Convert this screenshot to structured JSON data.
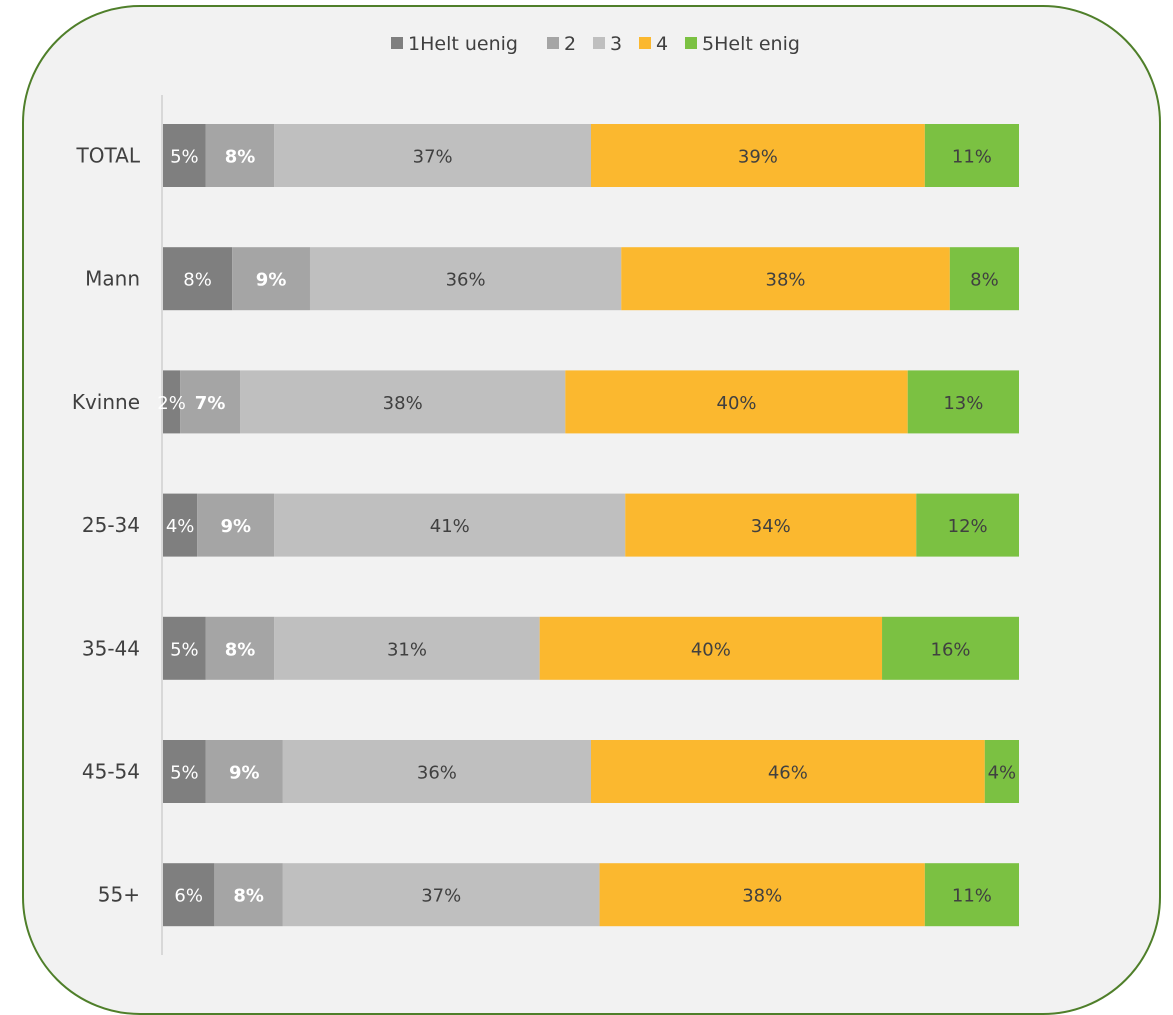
{
  "chart_data": {
    "type": "bar",
    "orientation": "horizontal",
    "stacked": true,
    "percent_stacked": true,
    "title": "",
    "xlabel": "",
    "ylabel": "",
    "legend_position": "top",
    "grid": false,
    "categories": [
      "TOTAL",
      "Mann",
      "Kvinne",
      "25-34",
      "35-44",
      "45-54",
      "55+"
    ],
    "series": [
      {
        "name": "1Helt uenig",
        "color": "#7f7f7f",
        "label_color": "#ffffff",
        "label_bold": false,
        "values": [
          5,
          8,
          2,
          4,
          5,
          5,
          6
        ],
        "labels": [
          "5%",
          "8%",
          "2%",
          "4%",
          "5%",
          "5%",
          "6%"
        ]
      },
      {
        "name": "2",
        "color": "#a5a5a5",
        "label_color": "#ffffff",
        "label_bold": true,
        "values": [
          8,
          9,
          7,
          9,
          8,
          9,
          8
        ],
        "labels": [
          "8%",
          "9%",
          "7%",
          "9%",
          "8%",
          "9%",
          "8%"
        ]
      },
      {
        "name": "3",
        "color": "#bfbfbf",
        "label_color": "#404040",
        "label_bold": false,
        "values": [
          37,
          36,
          38,
          41,
          31,
          36,
          37
        ],
        "labels": [
          "37%",
          "36%",
          "38%",
          "41%",
          "31%",
          "36%",
          "37%"
        ]
      },
      {
        "name": "4",
        "color": "#fbb82f",
        "label_color": "#404040",
        "label_bold": false,
        "values": [
          39,
          38,
          40,
          34,
          40,
          46,
          38
        ],
        "labels": [
          "39%",
          "38%",
          "40%",
          "34%",
          "40%",
          "46%",
          "38%"
        ]
      },
      {
        "name": "5Helt enig",
        "color": "#7bc142",
        "label_color": "#404040",
        "label_bold": false,
        "values": [
          11,
          8,
          13,
          12,
          16,
          4,
          11
        ],
        "labels": [
          "11%",
          "8%",
          "13%",
          "12%",
          "16%",
          "4%",
          "11%"
        ]
      }
    ]
  }
}
